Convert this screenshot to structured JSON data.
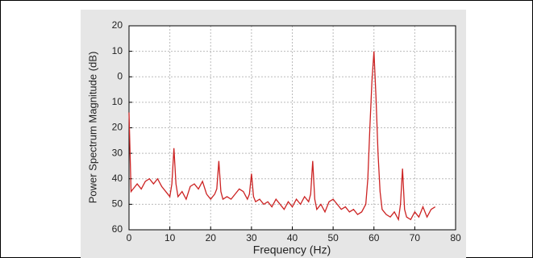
{
  "chart_data": {
    "type": "line",
    "xlabel": "Frequency (Hz)",
    "ylabel": "Power Spectrum Magnitude (dB)",
    "color": "#cc2222",
    "grid": true,
    "xlim": [
      0,
      80
    ],
    "xticks": [
      0,
      10,
      20,
      30,
      40,
      50,
      60,
      70,
      80
    ],
    "ylim": [
      -60,
      20
    ],
    "yticks": [
      20,
      10,
      0,
      {
        "value": -10,
        "label": "10"
      },
      {
        "value": -20,
        "label": "20"
      },
      {
        "value": -30,
        "label": "30"
      },
      {
        "value": -40,
        "label": "40"
      },
      {
        "value": -50,
        "label": "50"
      },
      {
        "value": -60,
        "label": "60"
      }
    ],
    "x": [
      0,
      0.5,
      1,
      2,
      3,
      4,
      5,
      6,
      7,
      8,
      9,
      10,
      10.5,
      11,
      11.5,
      12,
      13,
      14,
      15,
      16,
      17,
      18,
      19,
      20,
      21,
      21.5,
      22,
      22.5,
      23,
      24,
      25,
      26,
      27,
      28,
      29,
      29.5,
      30,
      30.5,
      31,
      32,
      33,
      34,
      35,
      36,
      37,
      38,
      39,
      40,
      41,
      42,
      43,
      44,
      44.5,
      45,
      45.5,
      46,
      47,
      48,
      49,
      50,
      51,
      52,
      53,
      54,
      55,
      56,
      57,
      58,
      58.5,
      59,
      59.5,
      60,
      60.5,
      61,
      61.5,
      62,
      63,
      64,
      65,
      66,
      66.5,
      67,
      67.5,
      68,
      69,
      70,
      71,
      72,
      73,
      74,
      75
    ],
    "values": [
      -14,
      -45,
      -44,
      -42,
      -44,
      -41,
      -40,
      -42,
      -40,
      -43,
      -45,
      -47,
      -42,
      -28,
      -42,
      -47,
      -45,
      -48,
      -43,
      -42,
      -44,
      -41,
      -46,
      -48,
      -46,
      -44,
      -33,
      -45,
      -48,
      -47,
      -48,
      -46,
      -44,
      -45,
      -48,
      -46,
      -38,
      -47,
      -49,
      -48,
      -50,
      -49,
      -51,
      -48,
      -50,
      -52,
      -49,
      -51,
      -48,
      -50,
      -47,
      -49,
      -46,
      -33,
      -48,
      -52,
      -50,
      -53,
      -49,
      -48,
      -50,
      -52,
      -51,
      -53,
      -52,
      -54,
      -53,
      -50,
      -40,
      -20,
      -2,
      10,
      -8,
      -30,
      -45,
      -52,
      -54,
      -55,
      -53,
      -56,
      -50,
      -36,
      -52,
      -55,
      -56,
      -53,
      -55,
      -51,
      -55,
      -52,
      -51
    ]
  }
}
